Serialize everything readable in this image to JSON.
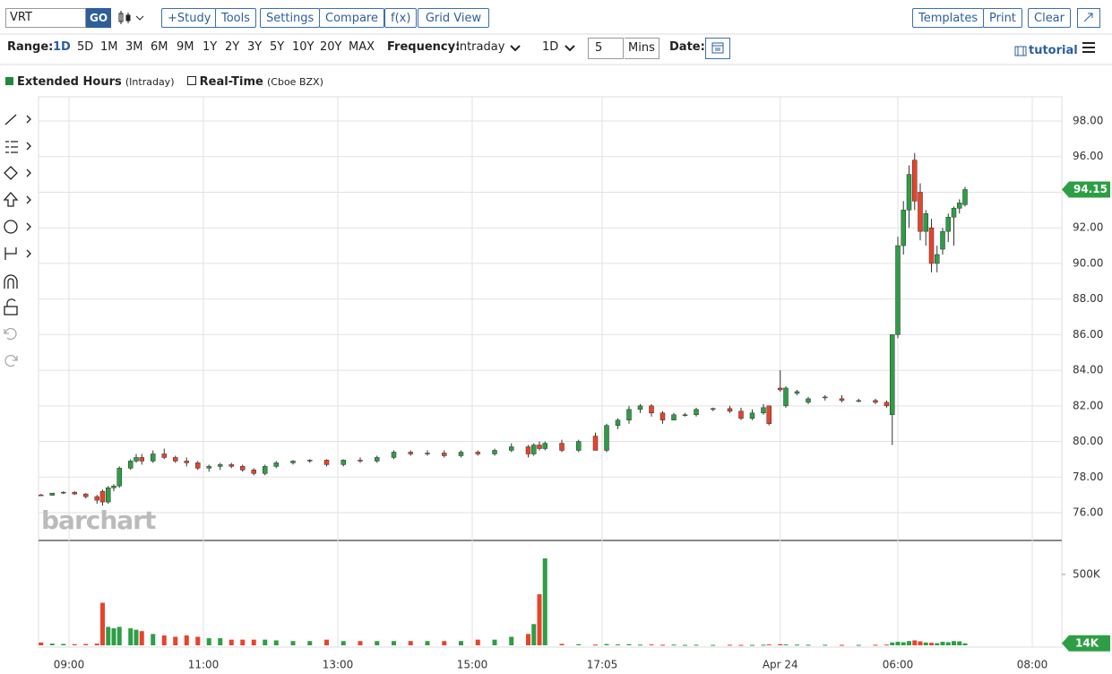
{
  "toolbar": {
    "symbol": "VRT",
    "go": "GO",
    "buttons": [
      "+Study",
      "Tools",
      "Settings",
      "Compare",
      "f(x)",
      "Grid View"
    ],
    "right_buttons": [
      "Templates",
      "Print",
      "Clear"
    ]
  },
  "options": {
    "range_label": "Range:",
    "ranges": [
      "1D",
      "5D",
      "1M",
      "3M",
      "6M",
      "9M",
      "1Y",
      "2Y",
      "3Y",
      "5Y",
      "10Y",
      "20Y",
      "MAX"
    ],
    "frequency_label": "Frequency:",
    "frequency": "Intraday",
    "period": "1D",
    "interval": "5",
    "interval_unit": "Mins",
    "date_label": "Date:",
    "tutorial": "tutorial"
  },
  "legend": {
    "extended": "Extended Hours",
    "extended_note": "(Intraday)",
    "realtime": "Real-Time",
    "realtime_note": "(Cboe BZX)"
  },
  "watermark": "barchart",
  "chart_data": {
    "type": "candlestick",
    "up_color": "#2e9e46",
    "down_color": "#e8432b",
    "grid": true,
    "xlim": [
      -5.44,
      177.28
    ],
    "xticks": [
      {
        "value": 0,
        "label": "09:00"
      },
      {
        "value": 24,
        "label": "11:00"
      },
      {
        "value": 48,
        "label": "13:00"
      },
      {
        "value": 72,
        "label": "15:00"
      },
      {
        "value": 95.2,
        "label": "17:05"
      },
      {
        "value": 127,
        "label": "Apr 24"
      },
      {
        "value": 148,
        "label": "06:00"
      },
      {
        "value": 172,
        "label": "08:00"
      }
    ],
    "ylim": [
      74.44,
      99.36
    ],
    "yticks": [
      {
        "value": 76,
        "label": "76.00"
      },
      {
        "value": 78,
        "label": "78.00"
      },
      {
        "value": 80,
        "label": "80.00"
      },
      {
        "value": 82,
        "label": "82.00"
      },
      {
        "value": 84,
        "label": "84.00"
      },
      {
        "value": 86,
        "label": "86.00"
      },
      {
        "value": 88,
        "label": "88.00"
      },
      {
        "value": 90,
        "label": "90.00"
      },
      {
        "value": 92,
        "label": "92.00"
      },
      {
        "value": 94,
        "label": "94.00"
      },
      {
        "value": 96,
        "label": "96.00"
      },
      {
        "value": 98,
        "label": "98.00"
      }
    ],
    "last_price": 94.15,
    "volume_ylim": [
      0,
      727000
    ],
    "volume_yticks": [
      {
        "value": 500000,
        "label": "500K"
      }
    ],
    "last_volume": {
      "value": 14000,
      "label": "14K"
    },
    "x": [
      -5,
      -3,
      -1,
      1,
      3,
      5,
      6,
      7,
      8,
      9,
      11,
      12,
      13,
      15,
      17,
      19,
      21,
      23,
      25,
      27,
      29,
      31,
      33,
      35,
      37,
      40,
      43,
      46,
      49,
      52,
      55,
      58,
      61,
      64,
      67,
      70,
      73,
      76,
      79,
      82,
      83,
      84,
      85,
      88,
      91,
      94,
      96,
      98,
      100,
      102,
      104,
      106,
      108,
      110,
      112,
      115,
      118,
      120,
      122,
      124,
      125,
      127,
      128,
      130,
      132,
      135,
      138,
      141,
      144,
      146,
      147,
      148,
      149,
      150,
      151,
      152,
      153,
      154,
      155,
      156,
      157,
      158,
      159,
      160
    ],
    "open": [
      77.0,
      76.98,
      77.1,
      77.15,
      77.05,
      76.9,
      77.2,
      76.6,
      77.4,
      77.5,
      78.5,
      78.9,
      79.1,
      78.9,
      79.3,
      79.1,
      78.9,
      78.8,
      78.5,
      78.6,
      78.7,
      78.6,
      78.4,
      78.2,
      78.6,
      78.8,
      78.9,
      78.95,
      78.7,
      78.95,
      78.9,
      79.1,
      79.4,
      79.3,
      79.35,
      79.2,
      79.4,
      79.3,
      79.5,
      79.7,
      79.3,
      79.8,
      79.6,
      79.9,
      79.5,
      80.3,
      79.5,
      80.9,
      81.2,
      81.8,
      82.0,
      81.6,
      81.2,
      81.5,
      81.5,
      81.8,
      81.85,
      81.7,
      81.3,
      81.6,
      82.0,
      83.0,
      82.0,
      82.7,
      82.2,
      82.5,
      82.4,
      82.3,
      82.3,
      82.2,
      81.5,
      86.0,
      91.0,
      93.0,
      95.8,
      94.0,
      91.8,
      92.0,
      90.0,
      90.8,
      91.8,
      92.6,
      93.1,
      93.3
    ],
    "high": [
      77.05,
      77.1,
      77.2,
      77.2,
      77.1,
      77.0,
      77.3,
      77.5,
      77.6,
      78.6,
      79.0,
      79.3,
      79.3,
      79.5,
      79.6,
      79.2,
      79.1,
      78.9,
      78.7,
      78.8,
      78.8,
      78.7,
      78.5,
      78.7,
      78.9,
      78.95,
      79.0,
      79.0,
      79.0,
      79.1,
      79.2,
      79.5,
      79.5,
      79.5,
      79.5,
      79.5,
      79.5,
      79.6,
      79.9,
      79.8,
      79.9,
      80.0,
      80.0,
      80.1,
      80.1,
      80.5,
      81.0,
      81.3,
      82.0,
      82.1,
      82.1,
      81.7,
      81.6,
      81.6,
      81.9,
      81.9,
      82.0,
      81.9,
      81.8,
      82.1,
      82.0,
      84.0,
      83.1,
      82.9,
      82.5,
      82.6,
      82.6,
      82.4,
      82.4,
      82.3,
      86.0,
      91.5,
      93.5,
      95.5,
      96.2,
      94.5,
      93.0,
      92.5,
      91.0,
      92.0,
      92.8,
      93.2,
      93.6,
      94.3
    ],
    "low": [
      76.95,
      76.95,
      77.05,
      77.0,
      76.8,
      76.5,
      76.4,
      76.5,
      77.2,
      77.4,
      78.4,
      78.8,
      78.7,
      78.8,
      79.0,
      78.8,
      78.6,
      78.4,
      78.3,
      78.4,
      78.5,
      78.3,
      78.1,
      78.1,
      78.5,
      78.7,
      78.8,
      78.6,
      78.6,
      78.8,
      78.8,
      79.0,
      79.2,
      79.2,
      79.1,
      79.1,
      79.2,
      79.2,
      79.4,
      79.1,
      79.2,
      79.5,
      79.5,
      79.4,
      79.4,
      79.5,
      79.4,
      80.7,
      81.0,
      81.6,
      81.4,
      81.0,
      81.2,
      81.4,
      81.4,
      81.7,
      81.6,
      81.2,
      81.2,
      81.5,
      80.9,
      82.8,
      81.9,
      82.6,
      82.1,
      82.3,
      82.2,
      82.2,
      82.1,
      81.9,
      79.8,
      85.8,
      90.5,
      92.0,
      93.0,
      91.3,
      91.0,
      89.5,
      89.5,
      90.5,
      91.2,
      91.0,
      92.8,
      93.2
    ],
    "close": [
      76.98,
      77.1,
      77.15,
      77.05,
      76.9,
      76.7,
      76.6,
      77.4,
      77.5,
      78.5,
      78.9,
      79.1,
      78.9,
      79.3,
      79.1,
      78.9,
      78.8,
      78.5,
      78.6,
      78.7,
      78.6,
      78.4,
      78.2,
      78.6,
      78.8,
      78.9,
      78.95,
      78.7,
      78.95,
      78.9,
      79.1,
      79.4,
      79.3,
      79.35,
      79.2,
      79.4,
      79.3,
      79.5,
      79.7,
      79.3,
      79.8,
      79.6,
      79.9,
      79.5,
      80.0,
      79.5,
      80.9,
      81.2,
      81.8,
      82.0,
      81.6,
      81.2,
      81.5,
      81.5,
      81.8,
      81.85,
      81.7,
      81.3,
      81.6,
      81.9,
      81.0,
      82.9,
      83.0,
      82.8,
      82.4,
      82.5,
      82.3,
      82.3,
      82.2,
      82.0,
      86.0,
      91.0,
      93.0,
      95.0,
      93.5,
      91.8,
      92.8,
      90.0,
      90.5,
      91.8,
      92.6,
      93.1,
      93.4,
      94.15
    ],
    "volume": [
      20000,
      12000,
      10000,
      8000,
      9000,
      12000,
      300000,
      130000,
      120000,
      130000,
      120000,
      110000,
      100000,
      80000,
      70000,
      60000,
      70000,
      60000,
      50000,
      50000,
      40000,
      40000,
      40000,
      40000,
      35000,
      30000,
      30000,
      40000,
      30000,
      30000,
      30000,
      30000,
      30000,
      30000,
      30000,
      30000,
      40000,
      40000,
      60000,
      80000,
      150000,
      360000,
      613000,
      10000,
      8000,
      5000,
      9000,
      6000,
      8000,
      5000,
      6000,
      4000,
      5000,
      3000,
      4000,
      3000,
      4000,
      3000,
      3000,
      4000,
      6000,
      8000,
      6000,
      5000,
      4000,
      4000,
      3000,
      3000,
      4000,
      5000,
      20000,
      25000,
      22000,
      30000,
      35000,
      28000,
      20000,
      18000,
      15000,
      25000,
      22000,
      30000,
      28000,
      14000
    ]
  }
}
